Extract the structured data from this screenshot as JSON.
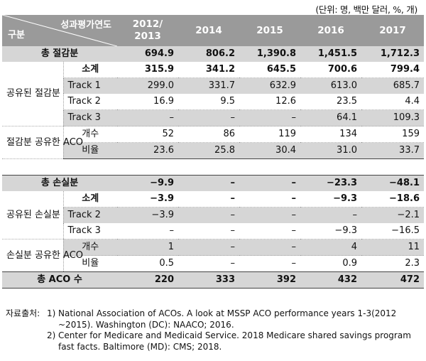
{
  "unit_note": "(단위: 명, 백만 달러, %, 개)",
  "header": {
    "corner_top": "성과평가연도",
    "corner_bottom": "구분",
    "years": [
      "2012/\n2013",
      "2014",
      "2015",
      "2016",
      "2017"
    ]
  },
  "savings": {
    "total": {
      "label": "총 절감분",
      "values": [
        "694.9",
        "806.2",
        "1,390.8",
        "1,451.5",
        "1,712.3"
      ]
    },
    "shared_group": "공유된 절감분",
    "subtotal": {
      "label": "소계",
      "values": [
        "315.9",
        "341.2",
        "645.5",
        "700.6",
        "799.4"
      ]
    },
    "track1": {
      "label": "Track 1",
      "values": [
        "299.0",
        "331.7",
        "632.9",
        "613.0",
        "685.7"
      ]
    },
    "track2": {
      "label": "Track 2",
      "values": [
        "16.9",
        "9.5",
        "12.6",
        "23.5",
        "4.4"
      ]
    },
    "track3": {
      "label": "Track 3",
      "values": [
        "–",
        "–",
        "–",
        "64.1",
        "109.3"
      ]
    },
    "aco_group": "절감분 공유한 ACO",
    "count": {
      "label": "개수",
      "values": [
        "52",
        "86",
        "119",
        "134",
        "159"
      ]
    },
    "ratio": {
      "label": "비율",
      "values": [
        "23.6",
        "25.8",
        "30.4",
        "31.0",
        "33.7"
      ]
    }
  },
  "losses": {
    "total": {
      "label": "총 손실분",
      "values": [
        "−9.9",
        "–",
        "–",
        "−23.3",
        "−48.1"
      ]
    },
    "shared_group": "공유된 손실분",
    "subtotal": {
      "label": "소계",
      "values": [
        "−3.9",
        "–",
        "–",
        "−9.3",
        "−18.6"
      ]
    },
    "track2": {
      "label": "Track 2",
      "values": [
        "−3.9",
        "–",
        "–",
        "–",
        "−2.1"
      ]
    },
    "track3": {
      "label": "Track 3",
      "values": [
        "–",
        "–",
        "–",
        "−9.3",
        "−16.5"
      ]
    },
    "aco_group": "손실분 공유한 ACO",
    "count": {
      "label": "개수",
      "values": [
        "1",
        "–",
        "–",
        "4",
        "11"
      ]
    },
    "ratio": {
      "label": "비율",
      "values": [
        "0.5",
        "–",
        "–",
        "0.9",
        "2.3"
      ]
    }
  },
  "total_aco": {
    "label": "총 ACO 수",
    "values": [
      "220",
      "333",
      "392",
      "432",
      "472"
    ]
  },
  "source": {
    "label": "자료출처:",
    "items": [
      {
        "n": "1)",
        "text": "National Association of ACOs. A look at MSSP ACO performance years 1-3(2012 ~2015). Washington (DC): NAACO; 2016."
      },
      {
        "n": "2)",
        "text": "Center for Medicare and Medicaid Service. 2018 Medicare shared savings program fast facts. Baltimore (MD): CMS; 2018."
      }
    ]
  }
}
